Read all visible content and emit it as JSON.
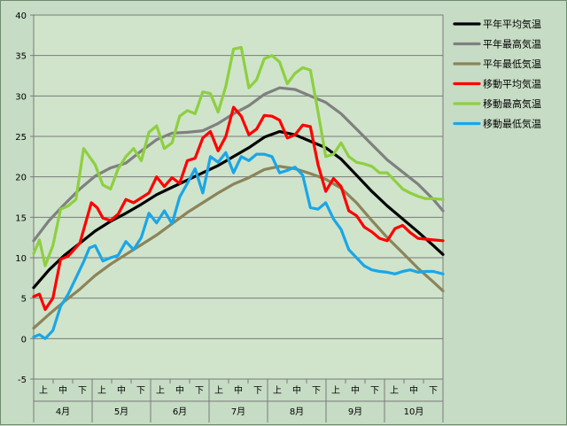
{
  "chart_data": {
    "type": "line",
    "ylim": [
      -5,
      40
    ],
    "yticks": [
      -5,
      0,
      5,
      10,
      15,
      20,
      25,
      30,
      35,
      40
    ],
    "grid": true,
    "legend_position": "right",
    "x_sub_labels": [
      "上",
      "中",
      "下"
    ],
    "x_months": [
      "4月",
      "5月",
      "6月",
      "7月",
      "8月",
      "9月",
      "10月"
    ],
    "x_range_days": [
      0,
      213
    ],
    "series": [
      {
        "name": "平年平均気温",
        "color": "#000000",
        "x": [
          0,
          8,
          16,
          24,
          32,
          40,
          48,
          56,
          64,
          72,
          80,
          88,
          96,
          104,
          112,
          120,
          128,
          136,
          144,
          152,
          160,
          168,
          176,
          184,
          192,
          200,
          208,
          213
        ],
        "y": [
          6.3,
          8.5,
          10.3,
          11.8,
          13.3,
          14.5,
          15.5,
          16.6,
          17.8,
          18.7,
          19.6,
          20.5,
          21.4,
          22.5,
          23.6,
          24.9,
          25.6,
          25.2,
          24.4,
          23.6,
          22.2,
          20.2,
          18.2,
          16.4,
          14.8,
          13.2,
          11.5,
          10.4
        ]
      },
      {
        "name": "平年最高気温",
        "color": "#808080",
        "x": [
          0,
          8,
          16,
          24,
          32,
          40,
          48,
          56,
          64,
          72,
          80,
          88,
          96,
          104,
          112,
          120,
          128,
          136,
          144,
          152,
          160,
          168,
          176,
          184,
          192,
          200,
          208,
          213
        ],
        "y": [
          12.1,
          14.6,
          16.6,
          18.5,
          20.1,
          21.1,
          21.7,
          23.2,
          24.6,
          25.4,
          25.5,
          25.7,
          26.6,
          27.8,
          28.8,
          30.2,
          31.0,
          30.8,
          30.0,
          29.2,
          27.8,
          25.9,
          24.0,
          22.1,
          20.6,
          19.1,
          17.2,
          15.8
        ]
      },
      {
        "name": "平年最低気温",
        "color": "#8c845a",
        "x": [
          0,
          8,
          16,
          24,
          32,
          40,
          48,
          56,
          64,
          72,
          80,
          88,
          96,
          104,
          112,
          120,
          128,
          136,
          144,
          152,
          160,
          168,
          176,
          184,
          192,
          200,
          208,
          213
        ],
        "y": [
          1.3,
          3.0,
          4.6,
          6.1,
          7.8,
          9.2,
          10.4,
          11.6,
          12.8,
          14.2,
          15.6,
          16.8,
          18.0,
          19.1,
          19.9,
          20.9,
          21.3,
          21.0,
          20.4,
          19.7,
          18.6,
          16.8,
          14.6,
          12.5,
          10.6,
          8.7,
          7.0,
          5.9
        ]
      },
      {
        "name": "移動平均気温",
        "color": "#ff0000",
        "x": [
          0,
          3,
          6,
          10,
          14,
          18,
          24,
          30,
          33,
          36,
          40,
          44,
          48,
          52,
          56,
          60,
          64,
          68,
          72,
          76,
          80,
          84,
          88,
          92,
          96,
          100,
          104,
          108,
          112,
          116,
          120,
          124,
          128,
          132,
          136,
          140,
          144,
          148,
          152,
          156,
          160,
          164,
          168,
          172,
          176,
          180,
          184,
          188,
          192,
          196,
          200,
          204,
          208,
          213
        ],
        "y": [
          5.2,
          5.5,
          3.6,
          5.0,
          9.8,
          10.2,
          11.8,
          16.8,
          16.2,
          14.9,
          14.6,
          15.4,
          17.2,
          16.8,
          17.4,
          18.0,
          20.0,
          18.8,
          19.9,
          19.2,
          22.0,
          22.3,
          24.8,
          25.6,
          23.2,
          25.0,
          28.6,
          27.5,
          25.2,
          25.9,
          27.6,
          27.5,
          27.0,
          24.8,
          25.2,
          26.4,
          26.2,
          21.5,
          18.2,
          19.8,
          18.8,
          15.8,
          15.2,
          13.8,
          13.2,
          12.4,
          12.1,
          13.6,
          14.0,
          13.1,
          12.4,
          12.3,
          12.2,
          12.1
        ]
      },
      {
        "name": "移動最高気温",
        "color": "#8ecf40",
        "x": [
          0,
          3,
          6,
          10,
          14,
          18,
          22,
          26,
          29,
          32,
          36,
          40,
          44,
          48,
          52,
          56,
          60,
          64,
          68,
          72,
          76,
          80,
          84,
          88,
          92,
          96,
          100,
          104,
          108,
          112,
          116,
          120,
          124,
          128,
          132,
          136,
          140,
          144,
          148,
          152,
          156,
          160,
          164,
          168,
          172,
          176,
          180,
          184,
          188,
          192,
          196,
          200,
          204,
          208,
          213
        ],
        "y": [
          10.5,
          12.2,
          9.0,
          11.5,
          16.0,
          16.4,
          17.2,
          23.5,
          22.5,
          21.5,
          19.0,
          18.5,
          21.0,
          22.5,
          23.5,
          22.0,
          25.5,
          26.3,
          23.5,
          24.2,
          27.5,
          28.2,
          27.8,
          30.5,
          30.3,
          28.0,
          31.2,
          35.8,
          36.0,
          31.0,
          32.0,
          34.6,
          35.0,
          34.2,
          31.5,
          32.8,
          33.5,
          33.2,
          28.0,
          22.5,
          22.8,
          24.2,
          22.5,
          21.8,
          21.6,
          21.3,
          20.5,
          20.5,
          19.5,
          18.5,
          18.0,
          17.6,
          17.3,
          17.3,
          17.2
        ]
      },
      {
        "name": "移動最低気温",
        "color": "#1aa6e8",
        "x": [
          0,
          3,
          6,
          10,
          14,
          18,
          22,
          26,
          29,
          32,
          36,
          40,
          44,
          48,
          52,
          56,
          60,
          64,
          68,
          72,
          76,
          80,
          84,
          88,
          92,
          96,
          100,
          104,
          108,
          112,
          116,
          120,
          124,
          128,
          132,
          136,
          140,
          144,
          148,
          152,
          156,
          160,
          164,
          168,
          172,
          176,
          180,
          184,
          188,
          192,
          196,
          200,
          204,
          208,
          213
        ],
        "y": [
          0.2,
          0.5,
          0.0,
          1.0,
          4.0,
          5.5,
          7.5,
          9.5,
          11.2,
          11.5,
          9.6,
          10.0,
          10.3,
          12.0,
          11.0,
          12.5,
          15.5,
          14.3,
          15.8,
          14.2,
          17.5,
          19.2,
          21.0,
          18.0,
          22.5,
          21.8,
          23.0,
          20.5,
          22.5,
          22.0,
          22.8,
          22.8,
          22.5,
          20.5,
          20.8,
          21.2,
          20.2,
          16.2,
          16.0,
          16.8,
          14.8,
          13.5,
          11.0,
          10.0,
          9.0,
          8.5,
          8.3,
          8.2,
          8.0,
          8.3,
          8.5,
          8.2,
          8.3,
          8.3,
          8.0
        ]
      }
    ]
  }
}
